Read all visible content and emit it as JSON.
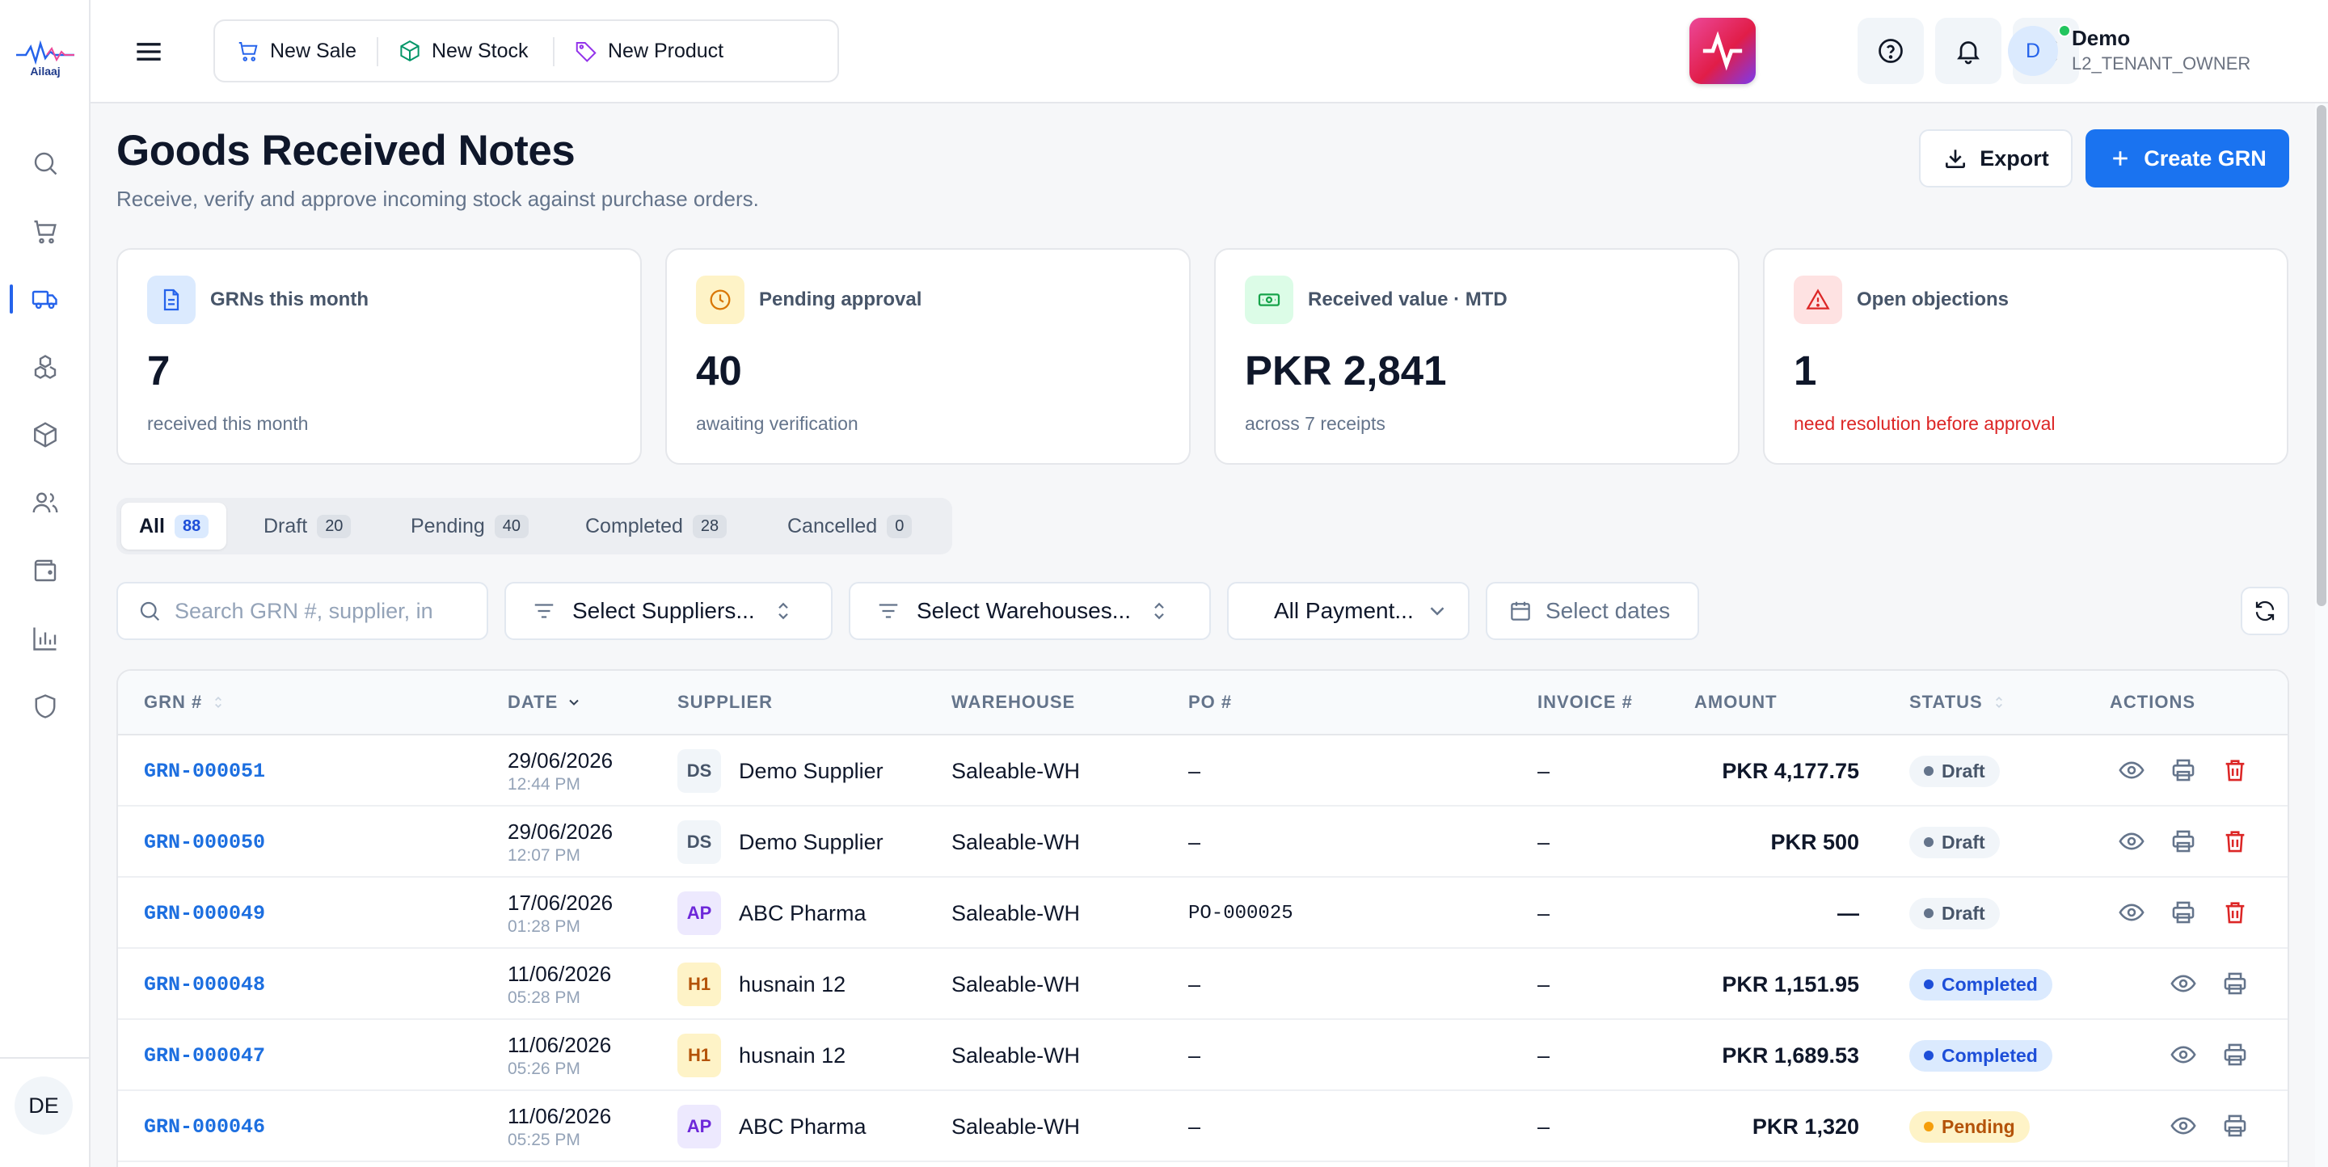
{
  "app": {
    "logo_text": "Ailaaj",
    "accent": "#1a73f0"
  },
  "topbar": {
    "quick_actions": [
      {
        "label": "New Sale",
        "icon": "cart-icon"
      },
      {
        "label": "New Stock",
        "icon": "box-icon"
      },
      {
        "label": "New Product",
        "icon": "tag-icon"
      }
    ],
    "user": {
      "initial": "D",
      "name": "Demo",
      "role": "L2_TENANT_OWNER"
    }
  },
  "sidebar": {
    "items": [
      "search",
      "cart",
      "truck",
      "boxes",
      "package",
      "users",
      "wallet",
      "chart",
      "shield"
    ],
    "active": "truck",
    "avatar_initials": "DE"
  },
  "page": {
    "title": "Goods Received Notes",
    "subtitle": "Receive, verify and approve incoming stock against purchase orders.",
    "export_label": "Export",
    "create_label": "Create GRN"
  },
  "stats": [
    {
      "label": "GRNs this month",
      "value": "7",
      "note": "received this month",
      "icon": "document-icon",
      "color": "#2563eb"
    },
    {
      "label": "Pending approval",
      "value": "40",
      "note": "awaiting verification",
      "icon": "clock-icon",
      "color": "#d97706"
    },
    {
      "label": "Received value · MTD",
      "value": "PKR 2,841",
      "note": "across 7 receipts",
      "icon": "cash-icon",
      "color": "#16a34a"
    },
    {
      "label": "Open objections",
      "value": "1",
      "note": "need resolution before approval",
      "icon": "warning-icon",
      "color": "#dc2626"
    }
  ],
  "tabs": [
    {
      "label": "All",
      "count": "88"
    },
    {
      "label": "Draft",
      "count": "20"
    },
    {
      "label": "Pending",
      "count": "40"
    },
    {
      "label": "Completed",
      "count": "28"
    },
    {
      "label": "Cancelled",
      "count": "0"
    }
  ],
  "filters": {
    "search_placeholder": "Search GRN #, supplier, in",
    "suppliers": "Select Suppliers...",
    "warehouses": "Select Warehouses...",
    "payment": "All Payment...",
    "dates": "Select dates"
  },
  "table": {
    "columns": [
      "GRN #",
      "DATE",
      "SUPPLIER",
      "WAREHOUSE",
      "PO #",
      "INVOICE #",
      "AMOUNT",
      "STATUS",
      "ACTIONS"
    ],
    "rows": [
      {
        "grn": "GRN-000051",
        "date": "29/06/2026",
        "time": "12:44 PM",
        "sup_initials": "DS",
        "supplier": "Demo Supplier",
        "warehouse": "Saleable-WH",
        "po": "–",
        "invoice": "–",
        "amount": "PKR 4,177.75",
        "status": "Draft"
      },
      {
        "grn": "GRN-000050",
        "date": "29/06/2026",
        "time": "12:07 PM",
        "sup_initials": "DS",
        "supplier": "Demo Supplier",
        "warehouse": "Saleable-WH",
        "po": "–",
        "invoice": "–",
        "amount": "PKR 500",
        "status": "Draft"
      },
      {
        "grn": "GRN-000049",
        "date": "17/06/2026",
        "time": "01:28 PM",
        "sup_initials": "AP",
        "supplier": "ABC Pharma",
        "warehouse": "Saleable-WH",
        "po": "PO-000025",
        "invoice": "–",
        "amount": "—",
        "status": "Draft"
      },
      {
        "grn": "GRN-000048",
        "date": "11/06/2026",
        "time": "05:28 PM",
        "sup_initials": "H1",
        "supplier": "husnain 12",
        "warehouse": "Saleable-WH",
        "po": "–",
        "invoice": "–",
        "amount": "PKR 1,151.95",
        "status": "Completed"
      },
      {
        "grn": "GRN-000047",
        "date": "11/06/2026",
        "time": "05:26 PM",
        "sup_initials": "H1",
        "supplier": "husnain 12",
        "warehouse": "Saleable-WH",
        "po": "–",
        "invoice": "–",
        "amount": "PKR 1,689.53",
        "status": "Completed"
      },
      {
        "grn": "GRN-000046",
        "date": "11/06/2026",
        "time": "05:25 PM",
        "sup_initials": "AP",
        "supplier": "ABC Pharma",
        "warehouse": "Saleable-WH",
        "po": "–",
        "invoice": "–",
        "amount": "PKR 1,320",
        "status": "Pending"
      }
    ]
  }
}
